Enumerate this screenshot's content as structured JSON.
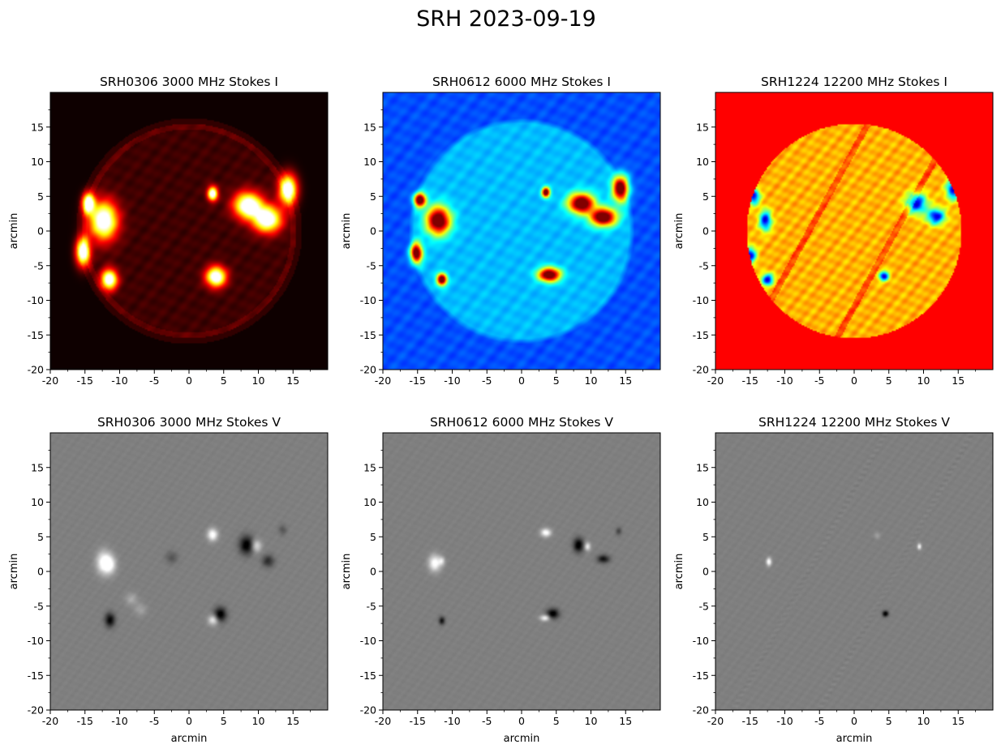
{
  "figure": {
    "title": "SRH 2023-09-19"
  },
  "chart_data": [
    {
      "type": "heatmap",
      "title": "SRH0306 3000 MHz Stokes I",
      "colormap": "hot",
      "xlabel": "",
      "ylabel": "arcmin",
      "xlim": [
        -20,
        20
      ],
      "ylim": [
        -20,
        20
      ],
      "xticks": [
        -20,
        -15,
        -10,
        -5,
        0,
        5,
        10,
        15
      ],
      "yticks": [
        -20,
        -15,
        -10,
        -5,
        0,
        5,
        10,
        15
      ],
      "disk_radius": 15.5,
      "grid": false
    },
    {
      "type": "heatmap",
      "title": "SRH0612 6000 MHz Stokes I",
      "colormap": "jet",
      "xlabel": "",
      "ylabel": "arcmin",
      "xlim": [
        -20,
        20
      ],
      "ylim": [
        -20,
        20
      ],
      "xticks": [
        -20,
        -15,
        -10,
        -5,
        0,
        5,
        10,
        15
      ],
      "yticks": [
        -20,
        -15,
        -10,
        -5,
        0,
        5,
        10,
        15
      ],
      "disk_radius": 15.5,
      "grid": false
    },
    {
      "type": "heatmap",
      "title": "SRH1224 12200 MHz Stokes I",
      "colormap": "jet",
      "xlabel": "",
      "ylabel": "arcmin",
      "xlim": [
        -20,
        20
      ],
      "ylim": [
        -20,
        20
      ],
      "xticks": [
        -20,
        -15,
        -10,
        -5,
        0,
        5,
        10,
        15
      ],
      "yticks": [
        -20,
        -15,
        -10,
        -5,
        0,
        5,
        10,
        15
      ],
      "disk_radius": 15.5,
      "grid": false
    },
    {
      "type": "heatmap",
      "title": "SRH0306 3000 MHz Stokes V",
      "colormap": "gray",
      "xlabel": "arcmin",
      "ylabel": "arcmin",
      "xlim": [
        -20,
        20
      ],
      "ylim": [
        -20,
        20
      ],
      "xticks": [
        -20,
        -15,
        -10,
        -5,
        0,
        5,
        10,
        15
      ],
      "yticks": [
        -20,
        -15,
        -10,
        -5,
        0,
        5,
        10,
        15
      ],
      "grid": false
    },
    {
      "type": "heatmap",
      "title": "SRH0612 6000 MHz Stokes V",
      "colormap": "gray",
      "xlabel": "arcmin",
      "ylabel": "arcmin",
      "xlim": [
        -20,
        20
      ],
      "ylim": [
        -20,
        20
      ],
      "xticks": [
        -20,
        -15,
        -10,
        -5,
        0,
        5,
        10,
        15
      ],
      "yticks": [
        -20,
        -15,
        -10,
        -5,
        0,
        5,
        10,
        15
      ],
      "grid": false
    },
    {
      "type": "heatmap",
      "title": "SRH1224 12200 MHz Stokes V",
      "colormap": "gray",
      "xlabel": "arcmin",
      "ylabel": "arcmin",
      "xlim": [
        -20,
        20
      ],
      "ylim": [
        -20,
        20
      ],
      "xticks": [
        -20,
        -15,
        -10,
        -5,
        0,
        5,
        10,
        15
      ],
      "yticks": [
        -20,
        -15,
        -10,
        -5,
        0,
        5,
        10,
        15
      ],
      "grid": false
    }
  ],
  "sources": {
    "i3000": [
      [
        -12.3,
        1.5,
        1.4,
        1.9
      ],
      [
        8.5,
        3.7,
        1.4,
        1.3
      ],
      [
        11.3,
        1.7,
        1.4,
        1.3
      ],
      [
        14.3,
        6.0,
        0.9,
        1.5
      ],
      [
        -15.3,
        -3.0,
        0.7,
        1.4
      ],
      [
        -14.5,
        4.0,
        0.6,
        1.0
      ],
      [
        -11.5,
        -7.0,
        0.8,
        1.0
      ],
      [
        3.9,
        -6.6,
        1.0,
        1.0
      ],
      [
        3.4,
        5.4,
        0.5,
        0.7
      ]
    ],
    "i6000": [
      [
        -12.0,
        1.5,
        1.2,
        1.4
      ],
      [
        8.6,
        4.0,
        1.3,
        1.0
      ],
      [
        11.8,
        2.0,
        1.3,
        0.9
      ],
      [
        14.3,
        6.2,
        0.8,
        1.3
      ],
      [
        -15.2,
        -3.2,
        0.6,
        1.0
      ],
      [
        -14.7,
        4.5,
        0.6,
        0.7
      ],
      [
        -11.5,
        -7.0,
        0.5,
        0.6
      ],
      [
        4.0,
        -6.3,
        1.1,
        0.7
      ],
      [
        3.5,
        5.6,
        0.4,
        0.5
      ]
    ],
    "i12200": [
      [
        -12.8,
        1.5,
        0.6,
        1.0
      ],
      [
        9.0,
        4.0,
        1.0,
        1.0
      ],
      [
        11.8,
        2.1,
        0.9,
        0.8
      ],
      [
        14.3,
        6.0,
        0.7,
        1.0
      ],
      [
        -15.0,
        -3.5,
        0.6,
        0.8
      ],
      [
        4.3,
        -6.5,
        0.5,
        0.5
      ],
      [
        -14.5,
        5.0,
        0.6,
        0.8
      ],
      [
        -12.5,
        -7.0,
        0.6,
        0.6
      ]
    ],
    "v3000": [
      [
        -12.3,
        1.3,
        0.7,
        1.1,
        1
      ],
      [
        -11.4,
        1.0,
        0.6,
        0.9,
        0.8
      ],
      [
        8.3,
        3.8,
        0.7,
        0.9,
        -1
      ],
      [
        9.7,
        3.7,
        0.5,
        0.6,
        0.7
      ],
      [
        11.4,
        1.5,
        0.6,
        0.6,
        -0.6
      ],
      [
        3.4,
        5.3,
        0.5,
        0.6,
        1
      ],
      [
        4.5,
        -6.2,
        0.6,
        0.7,
        -1
      ],
      [
        3.5,
        -7.0,
        0.5,
        0.5,
        0.8
      ],
      [
        -11.4,
        -7.0,
        0.5,
        0.7,
        -0.9
      ],
      [
        -8.3,
        -4.0,
        0.6,
        0.6,
        0.3
      ],
      [
        -7.0,
        -5.5,
        0.6,
        0.6,
        0.25
      ],
      [
        -2.5,
        2.0,
        0.6,
        0.6,
        -0.3
      ],
      [
        13.5,
        6.0,
        0.4,
        0.5,
        -0.3
      ]
    ],
    "v6000": [
      [
        -12.5,
        1.2,
        0.6,
        0.8,
        1
      ],
      [
        -11.5,
        1.5,
        0.3,
        0.4,
        0.6
      ],
      [
        8.2,
        3.8,
        0.5,
        0.7,
        -1
      ],
      [
        9.5,
        3.6,
        0.3,
        0.4,
        0.8
      ],
      [
        11.8,
        1.8,
        0.6,
        0.4,
        -0.8
      ],
      [
        3.5,
        5.6,
        0.5,
        0.4,
        1
      ],
      [
        4.5,
        -6.1,
        0.6,
        0.5,
        -1
      ],
      [
        3.4,
        -6.7,
        0.5,
        0.3,
        0.9
      ],
      [
        -11.5,
        -7.1,
        0.3,
        0.4,
        -0.8
      ],
      [
        14.0,
        5.8,
        0.3,
        0.4,
        -0.4
      ]
    ],
    "v12200": [
      [
        -12.3,
        1.4,
        0.25,
        0.4,
        1
      ],
      [
        9.4,
        3.6,
        0.2,
        0.3,
        0.9
      ],
      [
        4.5,
        -6.1,
        0.3,
        0.3,
        -1
      ],
      [
        3.3,
        5.2,
        0.3,
        0.3,
        0.25
      ]
    ]
  }
}
